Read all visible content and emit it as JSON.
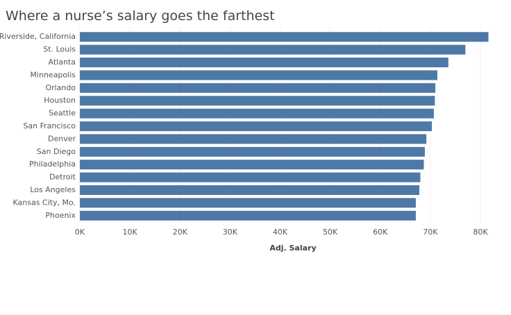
{
  "chart_data": {
    "type": "barh",
    "title": "Where a nurse’s salary goes the farthest",
    "categories": [
      "Riverside, California",
      "St. Louis",
      "Atlanta",
      "Minneapolis",
      "Orlando",
      "Houston",
      "Seattle",
      "San Francisco",
      "Denver",
      "San Diego",
      "Philadelphia",
      "Detroit",
      "Los Angeles",
      "Kansas City, Mo.",
      "Phoenix"
    ],
    "values": [
      81600,
      77000,
      73600,
      71400,
      71000,
      70900,
      70700,
      70300,
      69200,
      68900,
      68700,
      68000,
      67800,
      67100,
      67100
    ],
    "color": "#4e79a7",
    "x_label": "Adj. Salary",
    "xlim": [
      0,
      85000
    ],
    "xticks": [
      {
        "value": 0,
        "label": "0K"
      },
      {
        "value": 10000,
        "label": "10K"
      },
      {
        "value": 20000,
        "label": "20K"
      },
      {
        "value": 30000,
        "label": "30K"
      },
      {
        "value": 40000,
        "label": "40K"
      },
      {
        "value": 50000,
        "label": "50K"
      },
      {
        "value": 60000,
        "label": "60K"
      },
      {
        "value": 70000,
        "label": "70K"
      },
      {
        "value": 80000,
        "label": "80K"
      }
    ],
    "grid": true
  }
}
